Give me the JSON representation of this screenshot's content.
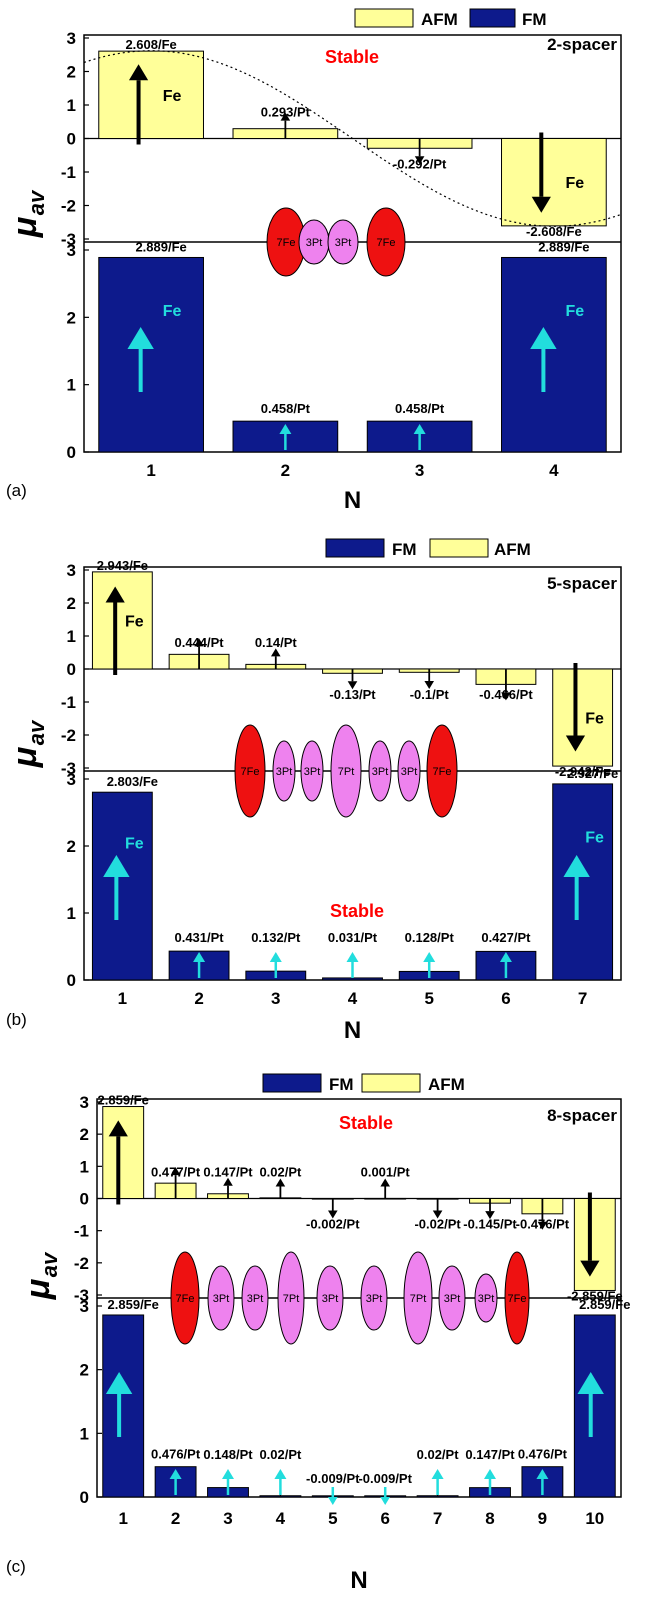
{
  "colors": {
    "fm": "#0d1a8c",
    "afm": "#ffff99",
    "stable": "#ff0000",
    "fe_atom": "#ee1111",
    "pt_atom": "#ee82ee",
    "cyan_arrow": "#22dddd"
  },
  "y_axis_label": "μ",
  "y_axis_subscript": "av",
  "x_axis_label": "N",
  "chart_data": [
    {
      "panel": "(a)",
      "type": "bar",
      "spacer_label": "2-spacer",
      "stable_label": "Stable",
      "stable_config": "AFM",
      "legend": [
        "AFM",
        "FM"
      ],
      "categories": [
        "1",
        "2",
        "3",
        "4"
      ],
      "xlabel": "N",
      "ylabel": "μav",
      "afm": {
        "values": [
          2.608,
          0.293,
          -0.292,
          -2.608
        ],
        "labels": [
          "2.608/Fe",
          "0.293/Pt",
          "-0.292/Pt",
          "-2.608/Fe"
        ],
        "yticks": [
          "3",
          "2",
          "1",
          "0",
          "-1",
          "-2",
          "-3"
        ],
        "ylim": [
          -3.2,
          3.2
        ]
      },
      "fm": {
        "values": [
          2.889,
          0.458,
          0.458,
          2.889
        ],
        "labels": [
          "2.889/Fe",
          "0.458/Pt",
          "0.458/Pt",
          "2.889/Fe"
        ],
        "yticks": [
          "3",
          "2",
          "1",
          "0"
        ],
        "ylim": [
          0,
          3.2
        ]
      },
      "atoms_in_bars": [
        "Fe",
        "",
        "",
        "Fe"
      ],
      "structure": [
        "7Fe",
        "3Pt",
        "3Pt",
        "7Fe"
      ]
    },
    {
      "panel": "(b)",
      "type": "bar",
      "spacer_label": "5-spacer",
      "stable_label": "Stable",
      "stable_config": "FM",
      "legend": [
        "FM",
        "AFM"
      ],
      "categories": [
        "1",
        "2",
        "3",
        "4",
        "5",
        "6",
        "7"
      ],
      "xlabel": "N",
      "ylabel": "μav",
      "afm": {
        "values": [
          2.943,
          0.444,
          0.14,
          -0.13,
          -0.1,
          -0.466,
          -2.942
        ],
        "labels": [
          "2.943/Fe",
          "0.444/Pt",
          "0.14/Pt",
          "-0.13/Pt",
          "-0.1/Pt",
          "-0.466/Pt",
          "-2.942/Fe"
        ],
        "yticks": [
          "3",
          "2",
          "1",
          "0",
          "-1",
          "-2",
          "-3"
        ],
        "ylim": [
          -3.2,
          3.2
        ]
      },
      "fm": {
        "values": [
          2.803,
          0.431,
          0.132,
          0.031,
          0.128,
          0.427,
          2.927
        ],
        "labels": [
          "2.803/Fe",
          "0.431/Pt",
          "0.132/Pt",
          "0.031/Pt",
          "0.128/Pt",
          "0.427/Pt",
          "2.927/Fe"
        ],
        "yticks": [
          "3",
          "2",
          "1",
          "0"
        ],
        "ylim": [
          0,
          3.2
        ]
      },
      "atoms_in_bars": [
        "Fe",
        "",
        "",
        "",
        "",
        "",
        "Fe"
      ],
      "structure": [
        "7Fe",
        "3Pt",
        "3Pt",
        "7Pt",
        "3Pt",
        "3Pt",
        "7Fe"
      ]
    },
    {
      "panel": "(c)",
      "type": "bar",
      "spacer_label": "8-spacer",
      "stable_label": "Stable",
      "stable_config": "AFM",
      "legend": [
        "FM",
        "AFM"
      ],
      "categories": [
        "1",
        "2",
        "3",
        "4",
        "5",
        "6",
        "7",
        "8",
        "9",
        "10"
      ],
      "xlabel": "N",
      "ylabel": "μav",
      "afm": {
        "values": [
          2.859,
          0.477,
          0.147,
          0.02,
          -0.002,
          0.001,
          -0.02,
          -0.145,
          -0.476,
          -2.859
        ],
        "labels": [
          "2.859/Fe",
          "0.477/Pt",
          "0.147/Pt",
          "0.02/Pt",
          "-0.002/Pt",
          "0.001/Pt",
          "-0.02/Pt",
          "-0.145/Pt",
          "-0.476/Pt",
          "-2.859/Fe"
        ],
        "yticks": [
          "3",
          "2",
          "1",
          "0",
          "-1",
          "-2",
          "-3"
        ],
        "ylim": [
          -3.2,
          3.2
        ]
      },
      "fm": {
        "values": [
          2.859,
          0.476,
          0.148,
          0.02,
          -0.009,
          -0.009,
          0.02,
          0.147,
          0.476,
          2.859
        ],
        "labels": [
          "2.859/Fe",
          "0.476/Pt",
          "0.148/Pt",
          "0.02/Pt",
          "-0.009/Pt",
          "-0.009/Pt",
          "0.02/Pt",
          "0.147/Pt",
          "0.476/Pt",
          "2.859/Fe"
        ],
        "yticks": [
          "3",
          "2",
          "1",
          "0"
        ],
        "ylim": [
          0,
          3.2
        ]
      },
      "atoms_in_bars": [
        "",
        "",
        "",
        "",
        "",
        "",
        "",
        "",
        "",
        ""
      ],
      "structure": [
        "7Fe",
        "3Pt",
        "3Pt",
        "7Pt",
        "3Pt",
        "3Pt",
        "7Pt",
        "3Pt",
        "3Pt",
        "7Fe"
      ]
    }
  ]
}
